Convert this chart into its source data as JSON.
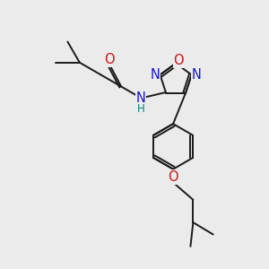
{
  "bg_color": "#ebebeb",
  "bond_color": "#1a1a1a",
  "n_color": "#1414cc",
  "o_color": "#cc1414",
  "h_color": "#008080",
  "font_size": 8.5,
  "line_width": 1.4,
  "figsize": [
    3.0,
    3.0
  ],
  "dpi": 100,
  "xlim": [
    0,
    10
  ],
  "ylim": [
    0,
    10
  ]
}
